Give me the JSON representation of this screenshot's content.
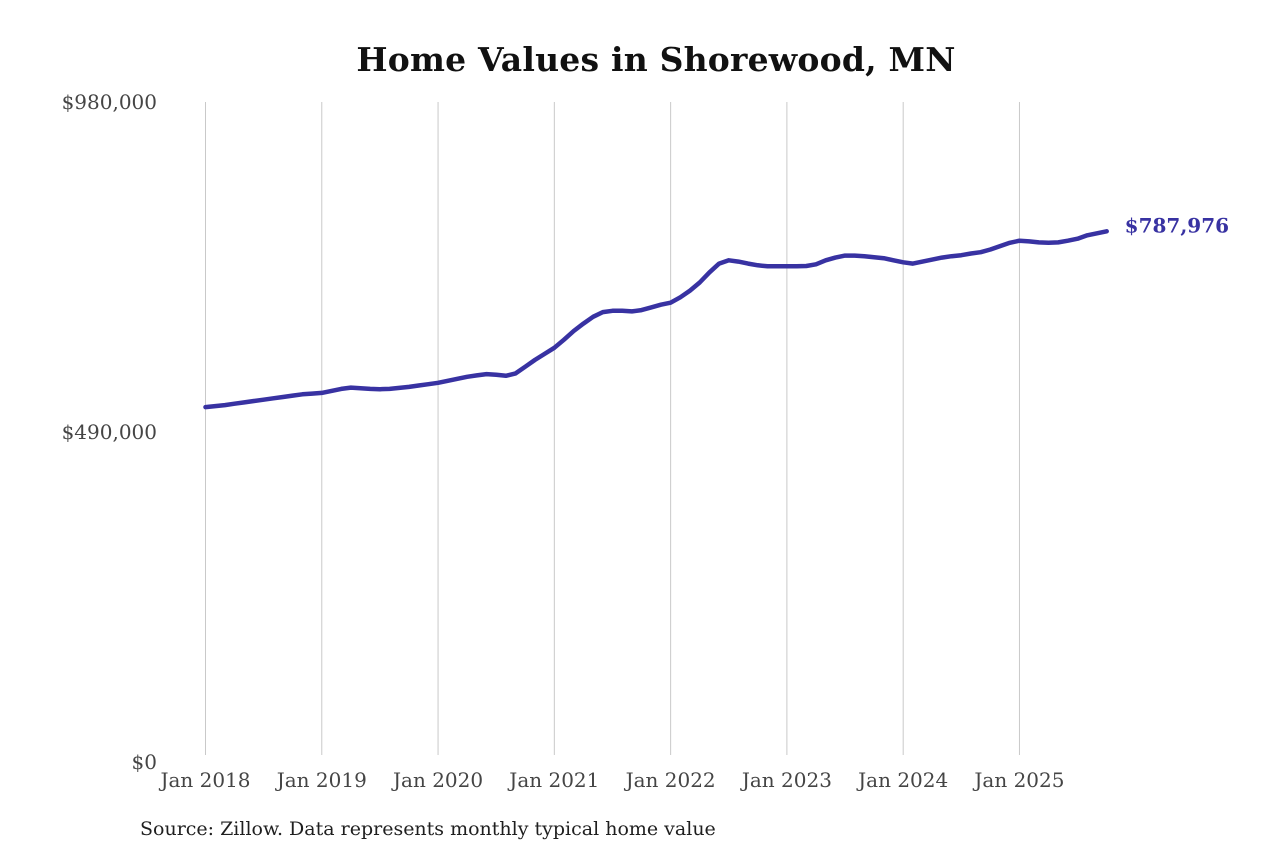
{
  "chart_data": {
    "type": "line",
    "title": "Home Values in Shorewood, MN",
    "source_note": "Source: Zillow. Data represents monthly typical home value",
    "series_name": "Monthly typical home value",
    "x_start": "Jan 2018",
    "x_frequency": "monthly",
    "n_points": 94,
    "values": [
      527000,
      528500,
      530000,
      532000,
      534000,
      536000,
      538000,
      540000,
      542000,
      544000,
      546000,
      547000,
      548000,
      551000,
      554000,
      556000,
      555000,
      554000,
      553500,
      554000,
      555500,
      557000,
      559000,
      561000,
      563000,
      566000,
      569000,
      572000,
      574000,
      576000,
      575000,
      573500,
      577000,
      587000,
      597000,
      606000,
      615000,
      627000,
      640000,
      651000,
      661000,
      668000,
      670000,
      670000,
      669000,
      671000,
      675000,
      679000,
      682000,
      690000,
      700000,
      712000,
      727000,
      740000,
      745000,
      743000,
      740000,
      737500,
      736000,
      736000,
      736000,
      736000,
      736500,
      739000,
      745000,
      749000,
      752000,
      752000,
      751000,
      749500,
      748000,
      745000,
      742000,
      740000,
      743000,
      746000,
      749000,
      751000,
      752500,
      755000,
      757000,
      761000,
      766000,
      771000,
      774000,
      773000,
      771500,
      771000,
      771500,
      774000,
      777000,
      782000,
      785000,
      787976
    ],
    "end_label": "$787,976",
    "last_value": 787976,
    "ylim": [
      0,
      980000
    ],
    "yticks": [
      {
        "value": 980000,
        "label": "$980,000"
      },
      {
        "value": 490000,
        "label": "$490,000"
      },
      {
        "value": 0,
        "label": "$0"
      }
    ],
    "xticks": [
      {
        "label": "Jan 2018",
        "month_index": 0
      },
      {
        "label": "Jan 2019",
        "month_index": 12
      },
      {
        "label": "Jan 2020",
        "month_index": 24
      },
      {
        "label": "Jan 2021",
        "month_index": 36
      },
      {
        "label": "Jan 2022",
        "month_index": 48
      },
      {
        "label": "Jan 2023",
        "month_index": 60
      },
      {
        "label": "Jan 2024",
        "month_index": 72
      },
      {
        "label": "Jan 2025",
        "month_index": 84
      }
    ],
    "grid": "vertical-only",
    "legend": "none",
    "colors": {
      "line": "#3832a2",
      "end_label": "#3832a2",
      "gridline": "#c9c9c9",
      "tick_label": "#454545",
      "title": "#111111",
      "source": "#1f1f1f",
      "background": "#ffffff"
    }
  }
}
